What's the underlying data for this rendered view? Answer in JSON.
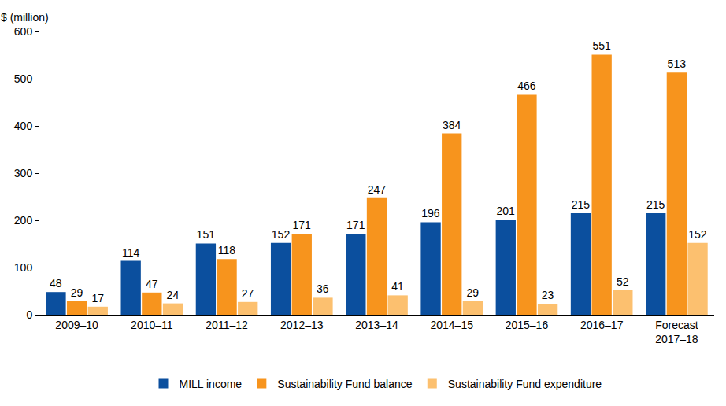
{
  "chart_data": {
    "type": "bar",
    "ylabel": "$ (million)",
    "categories": [
      "2009–10",
      "2010–11",
      "2011–12",
      "2012–13",
      "2013–14",
      "2014–15",
      "2015–16",
      "2016–17",
      "Forecast 2017–18"
    ],
    "series": [
      {
        "name": "MILL income",
        "color": "#0b4f9e",
        "values": [
          48,
          114,
          151,
          152,
          171,
          196,
          201,
          215,
          215
        ]
      },
      {
        "name": "Sustainability Fund balance",
        "color": "#f7941d",
        "values": [
          29,
          47,
          118,
          171,
          247,
          384,
          466,
          551,
          513
        ]
      },
      {
        "name": "Sustainability Fund expenditure",
        "color": "#fcc06f",
        "values": [
          17,
          24,
          27,
          36,
          41,
          29,
          23,
          52,
          152
        ]
      }
    ],
    "ylim": [
      0,
      600
    ],
    "yticks": [
      0,
      100,
      200,
      300,
      400,
      500,
      600
    ],
    "grid": false,
    "legend": "bottom",
    "data_labels": true
  }
}
